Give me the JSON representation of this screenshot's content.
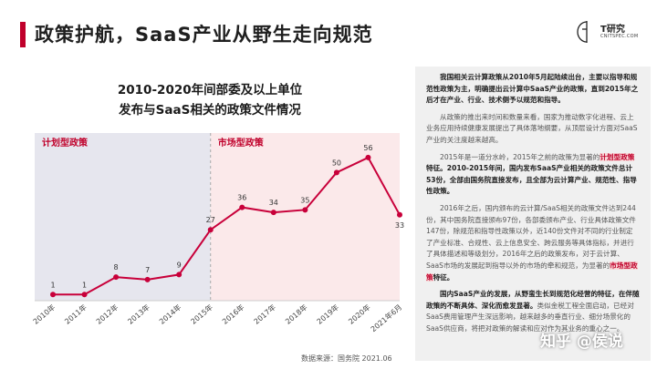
{
  "header": {
    "title": "政策护航，SaaS产业从野生走向规范",
    "logo_name": "T研究",
    "logo_sub": "CNITSPEC.COM"
  },
  "chart_title_line1": "2010-2020年间部委及以上单位",
  "chart_title_line2": "发布与SaaS相关的政策文件情况",
  "chart_data": {
    "type": "line",
    "title": "2010-2020年间部委及以上单位发布与SaaS相关的政策文件情况",
    "categories": [
      "2010年",
      "2011年",
      "2012年",
      "2013年",
      "2014年",
      "2015年",
      "2016年",
      "2017年",
      "2018年",
      "2019年",
      "2020年",
      "2021年6月"
    ],
    "values": [
      1,
      1,
      8,
      7,
      9,
      27,
      36,
      34,
      35,
      50,
      56,
      33
    ],
    "ylim": [
      0,
      60
    ],
    "regions": [
      {
        "label": "计划型政策",
        "from": "2010年",
        "to": "2015年",
        "color": "#e6e6ee"
      },
      {
        "label": "市场型政策",
        "from": "2015年",
        "to": "2021年6月",
        "color": "#fbe9ea"
      }
    ],
    "line_color": "#c8003a",
    "grid": false
  },
  "source": "数据来源：国务院 2021.06",
  "panel": {
    "p1": "我国相关云计算政策从2010年5月起陆续出台，主要以指导和规范性政策为主，明确提出云计算中SaaS产业的政策，直到2015年之后才在产业、行业、技术侧予以规范和指导。",
    "p2": "从政策的推出来时间和数量来看，国家为推动数字化进程、云上业务应用持续健康发展提出了具体落地纲要，从顶层设计方面对SaaS产业的关注度越来越高。",
    "p3a": "2015年是一道分水岭，2015年之前的政策为显著的",
    "p3b": "计划型政策",
    "p3c": "特征。2010-2015年间，国内发布SaaS产业相关的政策文件总计53份，全部由国务院直接发布，且全部为云计算产业、规范性、指导性政策。",
    "p4a": "2016年之后，国内颁布的云计算/SaaS相关的政策文件达到244份，其中国务院直接颁布97份，各部委颁布产业、行业具体政策文件147份，除规范和指导性政策以外，近140份文件对不同的行业制定了产业标准、合规性、云上信息安全、跨云服务等具体指标，并进行了具体描述和等级划分，2016年之后的政策发布，对于云计算、SaaS市场的发展起到指导以外的市场的牵和规范，为显著的",
    "p4b": "市场型政策",
    "p4c": "特征。",
    "p5a": "国内SaaS产业的发展，从野蛮生长到规范化经营的特征，在伴随政策的不断具体、深化而愈发显著。",
    "p5b": "类似金税工程全面启动，已经对SaaS费用管理产生深远影响，越来越多的垂直行业、细分场景化的SaaS供应商，将把对政策的解读和应对作为其业务的重心之一。"
  },
  "watermark": "知乎 @侯说"
}
